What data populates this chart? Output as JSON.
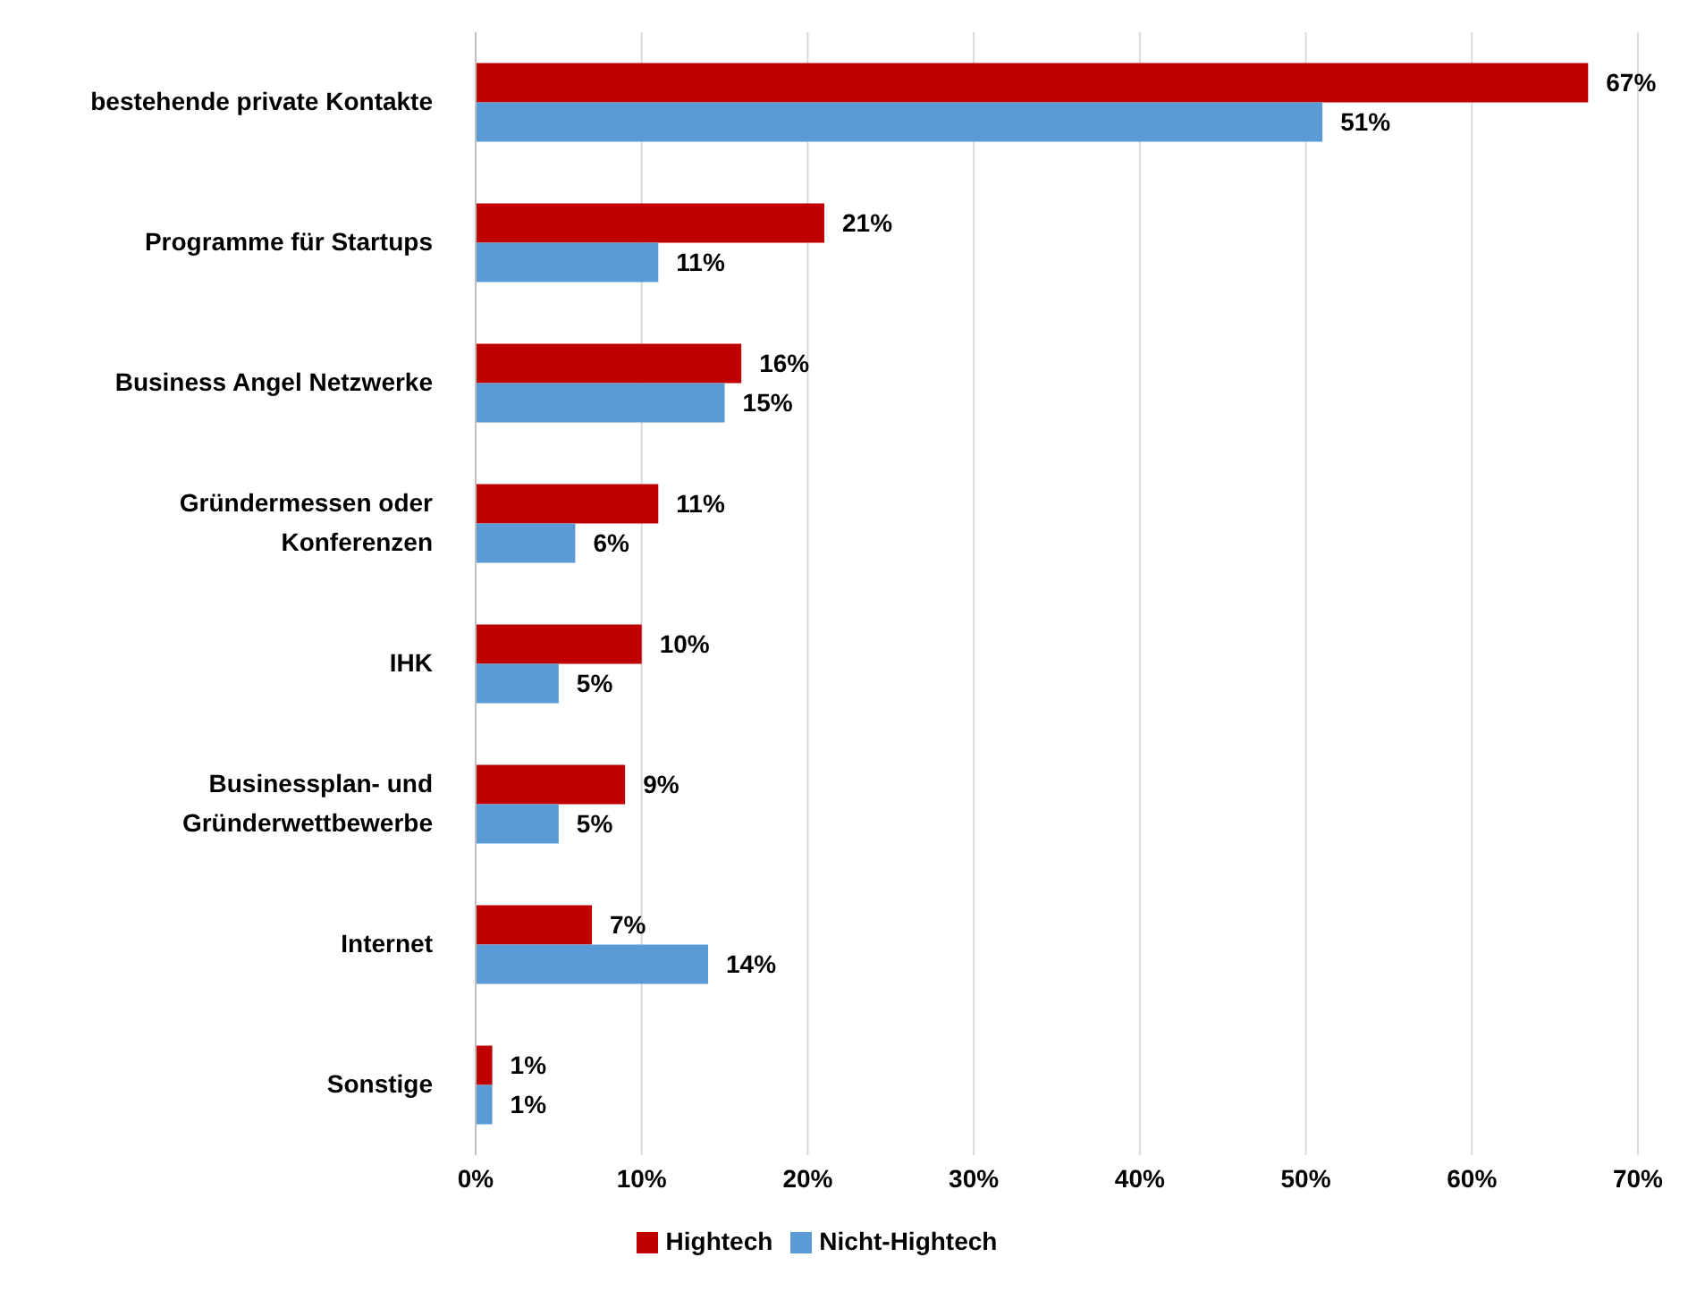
{
  "chart_data": {
    "type": "bar",
    "orientation": "horizontal",
    "categories": [
      "bestehende private Kontakte",
      "Programme für Startups",
      "Business Angel Netzwerke",
      "Gründermessen oder Konferenzen",
      "IHK",
      "Businessplan- und Gründerwettbewerbe",
      "Internet",
      "Sonstige"
    ],
    "series": [
      {
        "name": "Hightech",
        "color": "#c00000",
        "values": [
          67,
          21,
          16,
          11,
          10,
          9,
          7,
          1
        ],
        "value_labels": [
          "67%",
          "21%",
          "16%",
          "11%",
          "10%",
          "9%",
          "7%",
          "1%"
        ]
      },
      {
        "name": "Nicht-Hightech",
        "color": "#5b9bd5",
        "values": [
          51,
          11,
          15,
          6,
          5,
          5,
          14,
          1
        ],
        "value_labels": [
          "51%",
          "11%",
          "15%",
          "6%",
          "5%",
          "5%",
          "14%",
          "1%"
        ]
      }
    ],
    "xlim": [
      0,
      70
    ],
    "xticks": [
      {
        "value": 0,
        "label": "0%"
      },
      {
        "value": 10,
        "label": "10%"
      },
      {
        "value": 20,
        "label": "20%"
      },
      {
        "value": 30,
        "label": "30%"
      },
      {
        "value": 40,
        "label": "40%"
      },
      {
        "value": 50,
        "label": "50%"
      },
      {
        "value": 60,
        "label": "60%"
      },
      {
        "value": 70,
        "label": "70%"
      }
    ],
    "grid": "x",
    "legend": "bottom"
  }
}
